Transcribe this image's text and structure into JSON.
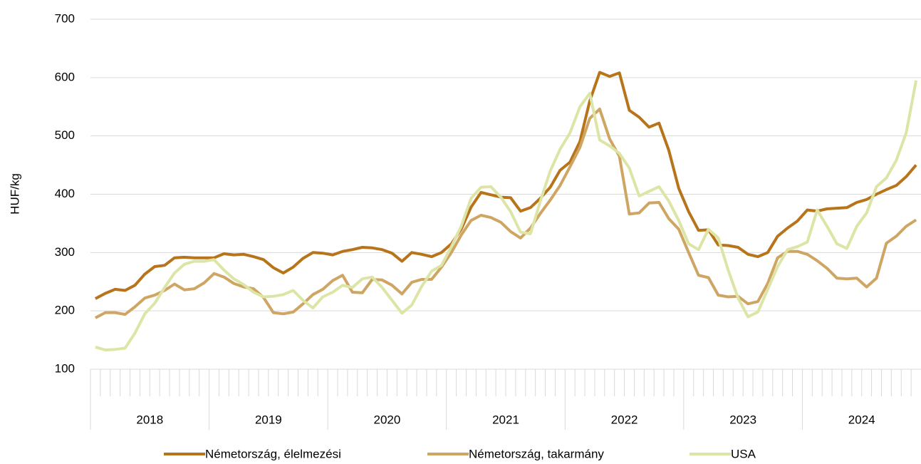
{
  "chart_data": {
    "type": "line",
    "y_label": "HUF/kg",
    "ylim": [
      100,
      700
    ],
    "yticks": [
      100,
      200,
      300,
      400,
      500,
      600,
      700
    ],
    "grid": true,
    "year_groups": [
      {
        "label": "2018",
        "months": 12
      },
      {
        "label": "2019",
        "months": 12
      },
      {
        "label": "2020",
        "months": 12
      },
      {
        "label": "2021",
        "months": 12
      },
      {
        "label": "2022",
        "months": 12
      },
      {
        "label": "2023",
        "months": 12
      },
      {
        "label": "2024",
        "months": 12
      }
    ],
    "legend": "bottom",
    "series": [
      {
        "name": "Németország, élelmezési",
        "color": "#b8741a",
        "values": [
          221,
          230,
          237,
          235,
          244,
          263,
          276,
          278,
          291,
          292,
          291,
          291,
          291,
          298,
          296,
          297,
          293,
          288,
          274,
          265,
          275,
          290,
          300,
          299,
          296,
          302,
          305,
          309,
          308,
          305,
          299,
          285,
          300,
          297,
          293,
          300,
          315,
          340,
          378,
          403,
          399,
          395,
          394,
          371,
          377,
          393,
          412,
          441,
          455,
          490,
          560,
          609,
          602,
          608,
          544,
          532,
          515,
          522,
          475,
          410,
          370,
          338,
          339,
          313,
          312,
          309,
          297,
          293,
          300,
          328,
          342,
          354,
          373,
          371,
          375,
          376,
          377,
          386,
          391,
          400,
          408,
          415,
          430,
          450
        ]
      },
      {
        "name": "Németország, takarmány",
        "color": "#cfa563",
        "values": [
          188,
          197,
          197,
          194,
          207,
          222,
          227,
          235,
          246,
          236,
          238,
          248,
          264,
          258,
          247,
          241,
          238,
          223,
          197,
          195,
          198,
          212,
          228,
          237,
          252,
          261,
          232,
          231,
          254,
          253,
          244,
          229,
          249,
          254,
          254,
          275,
          300,
          330,
          355,
          364,
          360,
          352,
          336,
          325,
          342,
          367,
          390,
          415,
          447,
          480,
          530,
          546,
          495,
          465,
          366,
          368,
          385,
          386,
          358,
          340,
          300,
          261,
          257,
          227,
          224,
          225,
          212,
          216,
          247,
          291,
          302,
          302,
          297,
          286,
          273,
          256,
          255,
          256,
          241,
          256,
          316,
          328,
          345,
          356
        ]
      },
      {
        "name": "USA",
        "color": "#dde5a6",
        "values": [
          138,
          133,
          134,
          136,
          162,
          195,
          213,
          240,
          265,
          280,
          285,
          285,
          288,
          270,
          255,
          245,
          232,
          224,
          225,
          228,
          235,
          218,
          205,
          224,
          232,
          244,
          240,
          255,
          258,
          240,
          218,
          196,
          210,
          242,
          268,
          278,
          310,
          345,
          393,
          412,
          413,
          395,
          370,
          335,
          332,
          388,
          440,
          477,
          505,
          550,
          573,
          493,
          483,
          470,
          445,
          397,
          405,
          413,
          388,
          355,
          315,
          305,
          340,
          325,
          270,
          222,
          190,
          198,
          237,
          276,
          305,
          310,
          318,
          373,
          345,
          315,
          307,
          345,
          368,
          413,
          428,
          458,
          505,
          595
        ]
      }
    ]
  }
}
